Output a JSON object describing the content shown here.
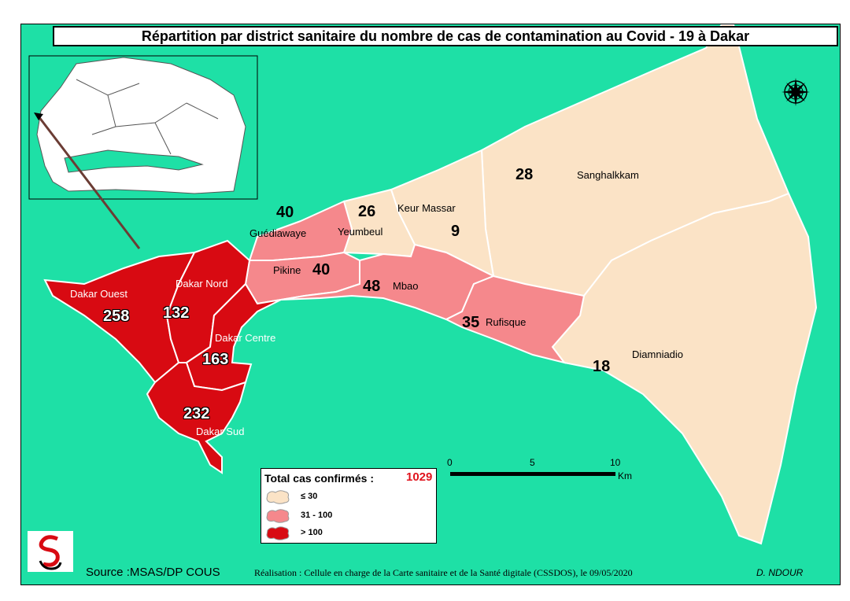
{
  "title": "Répartition par district sanitaire du nombre de cas de contamination au Covid - 19 à Dakar",
  "colors": {
    "sea": "#1ee0a6",
    "low": "#fbe3c6",
    "mid": "#f5888c",
    "high": "#d80a12",
    "border": "#ffffff"
  },
  "districts": [
    {
      "name": "Dakar Ouest",
      "cases": "258",
      "category": "> 100"
    },
    {
      "name": "Dakar Nord",
      "cases": "132",
      "category": "> 100"
    },
    {
      "name": "Dakar Centre",
      "cases": "163",
      "category": "> 100"
    },
    {
      "name": "Dakar Sud",
      "cases": "232",
      "category": "> 100"
    },
    {
      "name": "Guédiawaye",
      "cases": "40",
      "category": "31 - 100"
    },
    {
      "name": "Pikine",
      "cases": "40",
      "category": "31 - 100"
    },
    {
      "name": "Mbao",
      "cases": "48",
      "category": "31 - 100"
    },
    {
      "name": "Rufisque",
      "cases": "35",
      "category": "31 - 100"
    },
    {
      "name": "Yeumbeul",
      "cases": "26",
      "category": "≤ 30"
    },
    {
      "name": "Keur Massar",
      "cases": "9",
      "category": "≤ 30"
    },
    {
      "name": "Sanghalkkam",
      "cases": "28",
      "category": "≤ 30"
    },
    {
      "name": "Diamniadio",
      "cases": "18",
      "category": "≤ 30"
    }
  ],
  "legend": {
    "title": "Total cas confirmés :",
    "total": "1029",
    "classes": [
      {
        "label": "≤ 30",
        "color": "#fbe3c6"
      },
      {
        "label": "31 - 100",
        "color": "#f5888c"
      },
      {
        "label": "> 100",
        "color": "#d80a12"
      }
    ]
  },
  "scale_bar": {
    "ticks": [
      "0",
      "5",
      "10"
    ],
    "unit": "Km"
  },
  "icons": {
    "compass": "compass-rose-icon",
    "logo": "health-ministry-logo"
  },
  "footer": {
    "source": "Source :MSAS/DP COUS",
    "realisation": "Réalisation : Cellule en charge  de la Carte sanitaire et de la Santé digitale  (CSSDOS), le 09/05/2020",
    "author": "D. NDOUR"
  }
}
